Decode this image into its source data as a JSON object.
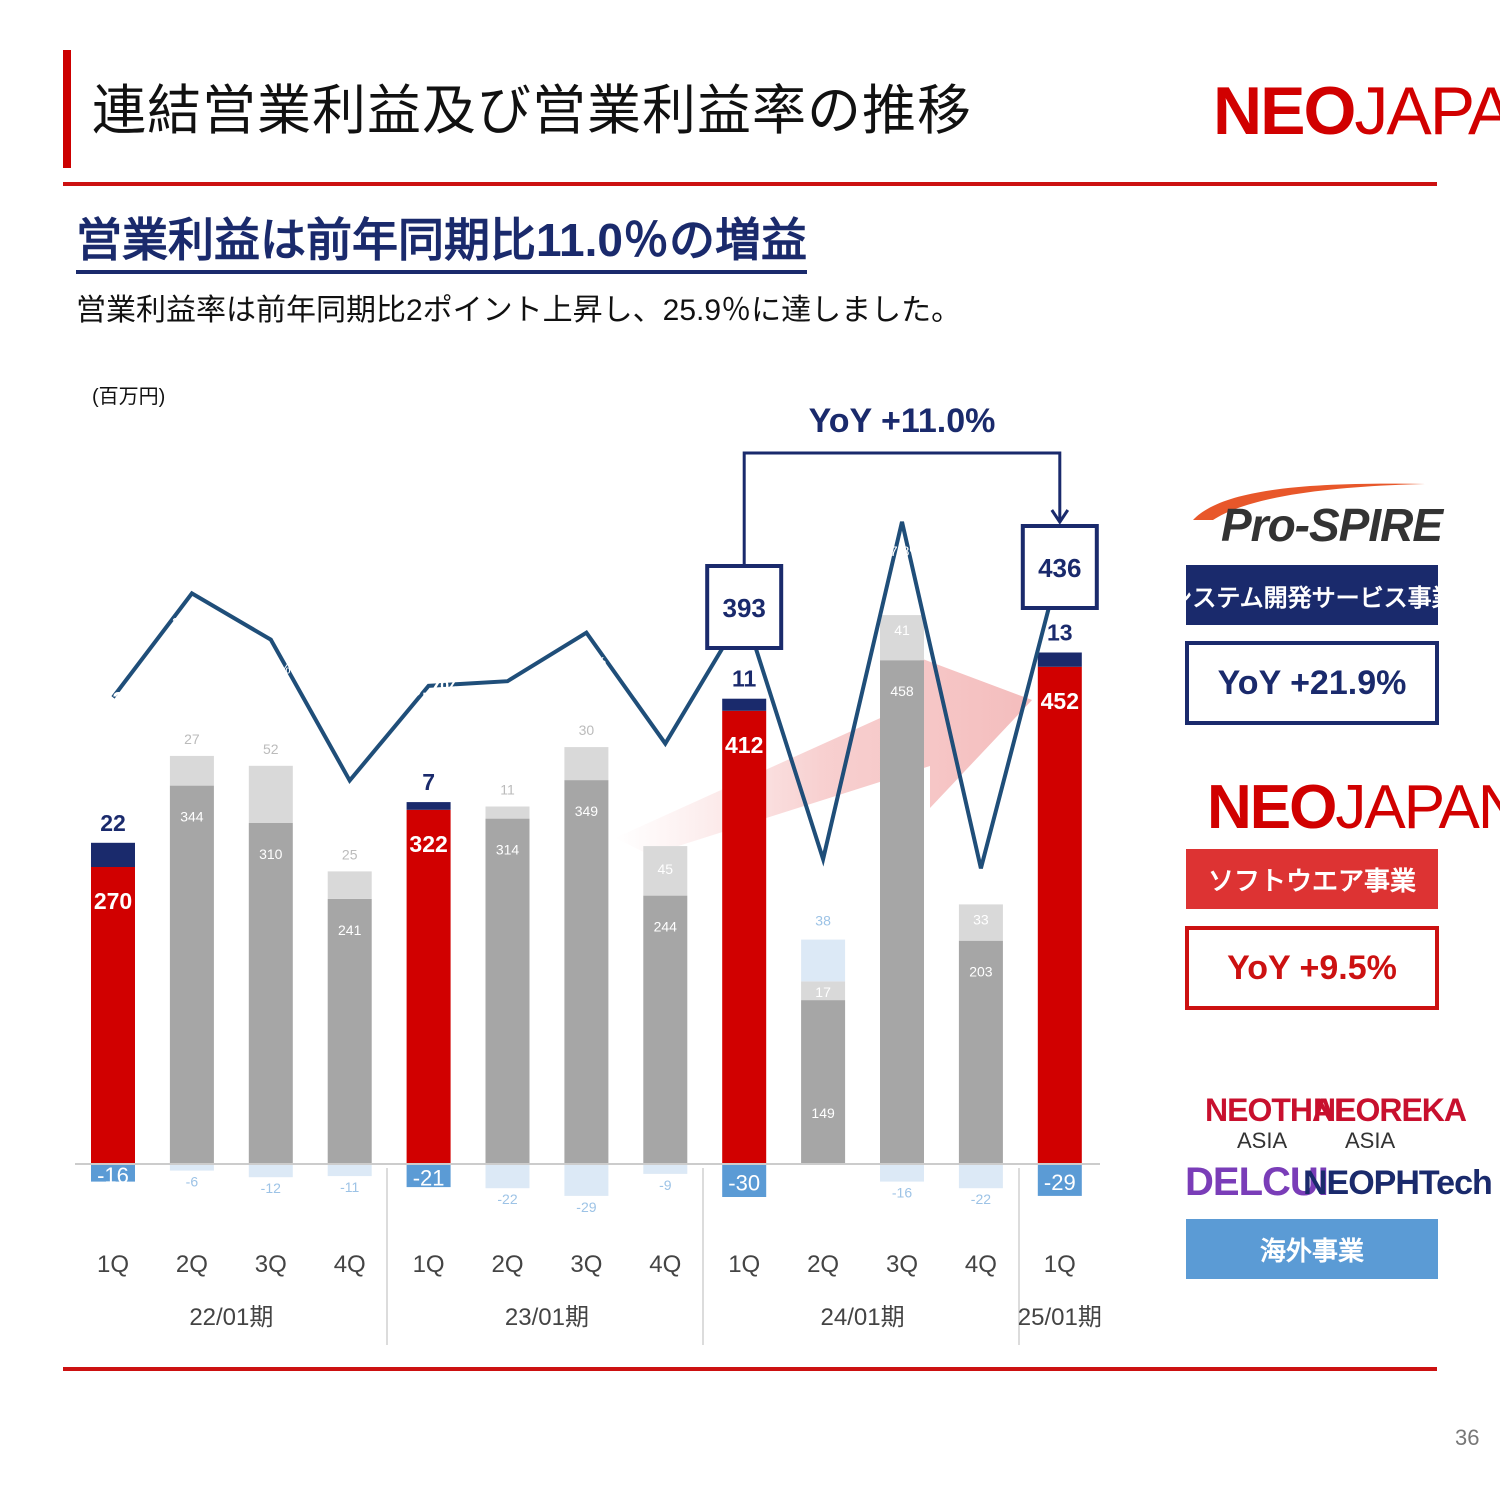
{
  "page": {
    "title": "連結営業利益及び営業利益率の推移",
    "headline": "営業利益は前年同期比11.0％の増益",
    "subline": "営業利益率は前年同期比2ポイント上昇し、25.9％に達しました。",
    "unit": "(百万円)",
    "page_number": "36",
    "logo": {
      "bold": "NEO",
      "rest": "JAPAN"
    }
  },
  "colors": {
    "accent_red": "#d10000",
    "navy": "#1a2a6c",
    "gray": "#a6a6a6",
    "light_gray": "#d9d9d9",
    "blue": "#5b9bd5",
    "light_blue": "#dce9f6",
    "line": "#1f4e79"
  },
  "segments": {
    "prospire_logo": "Pro-SPIRE",
    "system_label": "システム開発サービス事業",
    "system_yoy": "YoY +21.9%",
    "neojapan_logo": {
      "bold": "NEO",
      "rest": "JAPAN"
    },
    "software_label": "ソフトウエア事業",
    "software_yoy": "YoY +9.5%",
    "overseas_logos": [
      "NEOTHAI",
      "ASIA",
      "NEOREKA",
      "ASIA",
      "DELCUI",
      "NEOPHTech"
    ],
    "overseas_label": "海外事業"
  },
  "chart_data": {
    "type": "bar",
    "categories": [
      "1Q",
      "2Q",
      "3Q",
      "4Q",
      "1Q",
      "2Q",
      "3Q",
      "4Q",
      "1Q",
      "2Q",
      "3Q",
      "4Q",
      "1Q"
    ],
    "groups": [
      {
        "label": "22/01期",
        "span": [
          0,
          3
        ]
      },
      {
        "label": "23/01期",
        "span": [
          4,
          7
        ]
      },
      {
        "label": "24/01期",
        "span": [
          8,
          11
        ]
      },
      {
        "label": "25/01期",
        "span": [
          12,
          12
        ]
      }
    ],
    "highlight": [
      0,
      4,
      8,
      12
    ],
    "series": [
      {
        "name": "ソフトウエア事業",
        "values": [
          270,
          344,
          310,
          241,
          322,
          314,
          349,
          244,
          412,
          149,
          458,
          203,
          452
        ]
      },
      {
        "name": "システム開発サービス事業",
        "values": [
          22,
          27,
          52,
          25,
          7,
          11,
          30,
          45,
          11,
          17,
          41,
          33,
          13
        ]
      },
      {
        "name": "海外事業",
        "values": [
          -16,
          -6,
          -12,
          -11,
          -21,
          -22,
          -29,
          -9,
          -30,
          38,
          -16,
          -22,
          -29
        ]
      }
    ],
    "margin": {
      "values": [
        20.2,
        24.7,
        22.7,
        16.6,
        20.7,
        20.9,
        23.0,
        18.2,
        23.9,
        13.2,
        27.8,
        12.8,
        25.9
      ]
    },
    "callout": {
      "from_value": "393",
      "to_value": "436",
      "label": "YoY +11.0%"
    }
  }
}
